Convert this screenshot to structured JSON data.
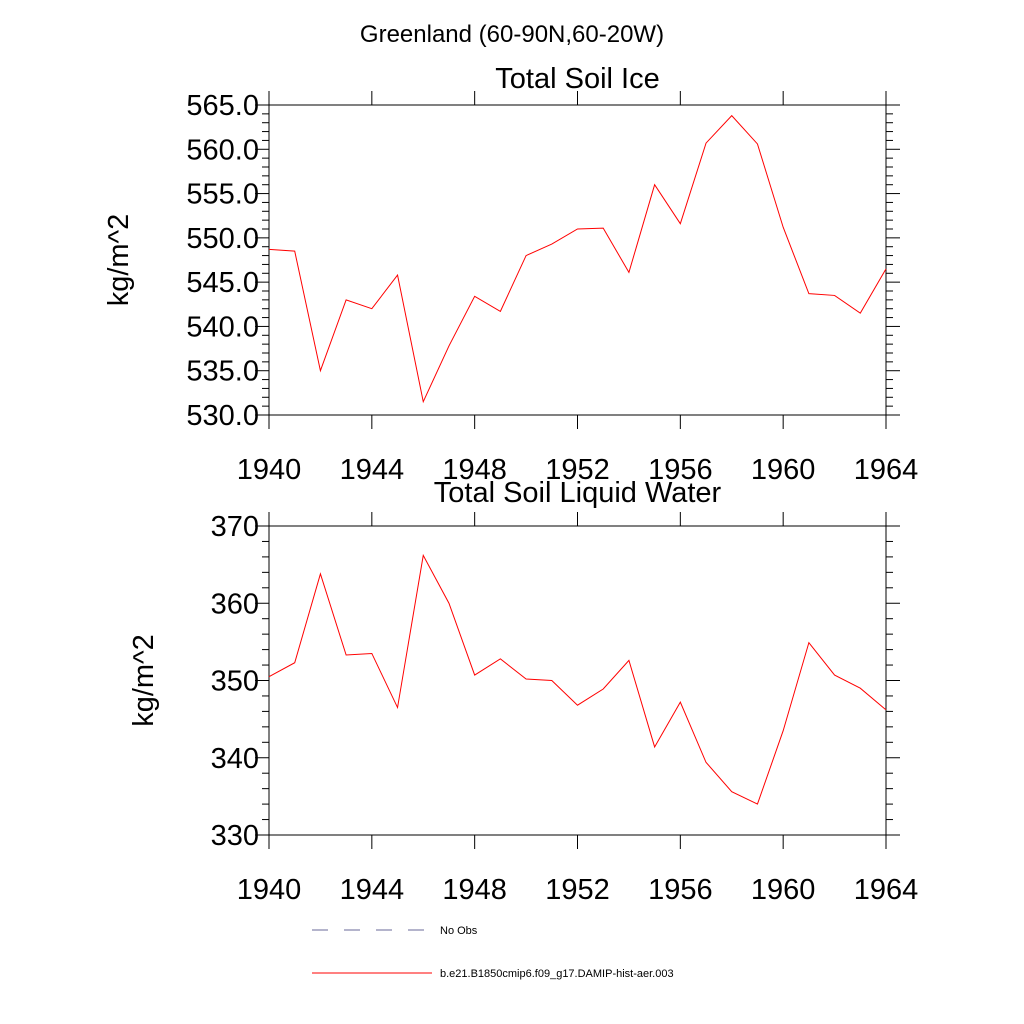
{
  "figure": {
    "title": "Greenland (60-90N,60-20W)"
  },
  "colors": {
    "series": "#ff0000",
    "obs": "#6a6a9a",
    "axis": "#000000"
  },
  "legend": {
    "obs_label": "No Obs",
    "model_label": "b.e21.B1850cmip6.f09_g17.DAMIP-hist-aer.003"
  },
  "chart_data": [
    {
      "type": "line",
      "title": "Total Soil Ice",
      "ylabel": "kg/m^2",
      "xlabel": "",
      "xlim": [
        1940,
        1964
      ],
      "ylim": [
        530,
        565
      ],
      "xticks": [
        "1940",
        "1944",
        "1948",
        "1952",
        "1956",
        "1960",
        "1964"
      ],
      "yticks": [
        "530.0",
        "535.0",
        "540.0",
        "545.0",
        "550.0",
        "555.0",
        "560.0",
        "565.0"
      ],
      "series": [
        {
          "name": "b.e21.B1850cmip6.f09_g17.DAMIP-hist-aer.003",
          "x": [
            1940,
            1941,
            1942,
            1943,
            1944,
            1945,
            1946,
            1947,
            1948,
            1949,
            1950,
            1951,
            1952,
            1953,
            1954,
            1955,
            1956,
            1957,
            1958,
            1959,
            1960,
            1961,
            1962,
            1963,
            1964
          ],
          "values": [
            548.7,
            548.5,
            535.0,
            543.0,
            542.0,
            545.8,
            531.5,
            537.8,
            543.4,
            541.7,
            548.0,
            549.3,
            551.0,
            551.1,
            546.1,
            556.0,
            551.6,
            560.7,
            563.8,
            560.6,
            551.2,
            543.7,
            543.5,
            541.5,
            546.5
          ]
        }
      ]
    },
    {
      "type": "line",
      "title": "Total Soil Liquid Water",
      "ylabel": "kg/m^2",
      "xlabel": "",
      "xlim": [
        1940,
        1964
      ],
      "ylim": [
        330,
        370
      ],
      "xticks": [
        "1940",
        "1944",
        "1948",
        "1952",
        "1956",
        "1960",
        "1964"
      ],
      "yticks": [
        "330",
        "340",
        "350",
        "360",
        "370"
      ],
      "series": [
        {
          "name": "b.e21.B1850cmip6.f09_g17.DAMIP-hist-aer.003",
          "x": [
            1940,
            1941,
            1942,
            1943,
            1944,
            1945,
            1946,
            1947,
            1948,
            1949,
            1950,
            1951,
            1952,
            1953,
            1954,
            1955,
            1956,
            1957,
            1958,
            1959,
            1960,
            1961,
            1962,
            1963,
            1964
          ],
          "values": [
            350.5,
            352.3,
            363.8,
            353.3,
            353.5,
            346.5,
            366.2,
            360.0,
            350.7,
            352.8,
            350.2,
            350.0,
            346.8,
            348.9,
            352.6,
            341.4,
            347.2,
            339.4,
            335.6,
            334.0,
            343.5,
            354.9,
            350.7,
            349.0,
            346.2
          ]
        }
      ]
    }
  ]
}
